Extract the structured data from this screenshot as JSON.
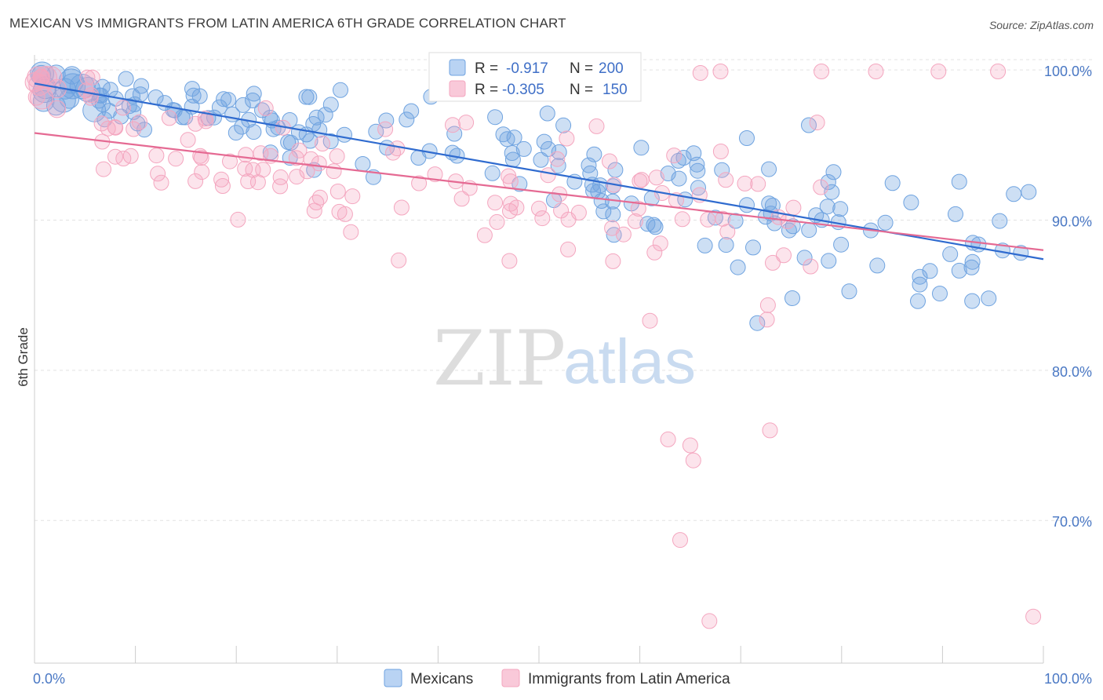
{
  "title": "MEXICAN VS IMMIGRANTS FROM LATIN AMERICA 6TH GRADE CORRELATION CHART",
  "source": "Source: ZipAtlas.com",
  "watermark": {
    "zip": "ZIP",
    "atlas": "atlas"
  },
  "colors": {
    "blue": "#6fa3e0",
    "blue_line": "#2f6bcf",
    "pink": "#f4a6bf",
    "pink_line": "#e56a93"
  },
  "chart_data": {
    "type": "scatter",
    "ylabel": "6th Grade",
    "x_ticks": [
      "0.0%",
      "100.0%"
    ],
    "y_ticks": [
      "100.0%",
      "90.0%",
      "80.0%",
      "70.0%"
    ],
    "xlim": [
      0,
      100
    ],
    "ylim": [
      60.5,
      101
    ],
    "grid": true,
    "legend_stats": [
      {
        "r_label": "R =",
        "r": "-0.917",
        "n_label": "N =",
        "n": "200"
      },
      {
        "r_label": "R =",
        "r": "-0.305",
        "n_label": "N =",
        "n": "150"
      }
    ],
    "series": [
      {
        "name": "Mexicans",
        "trend": [
          [
            0,
            99.1
          ],
          [
            100,
            87.4
          ]
        ]
      },
      {
        "name": "Immigrants from Latin America",
        "trend": [
          [
            0,
            95.8
          ],
          [
            100,
            88.0
          ]
        ]
      }
    ]
  }
}
